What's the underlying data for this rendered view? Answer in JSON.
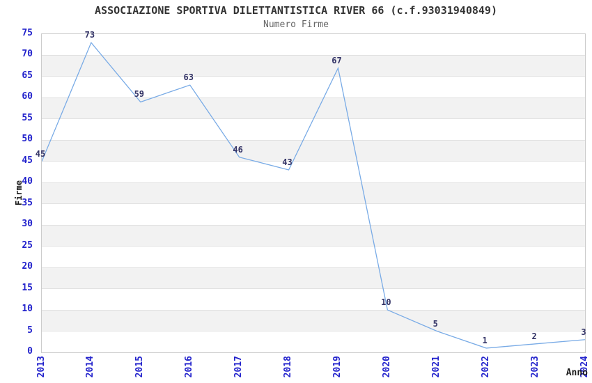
{
  "chart_data": {
    "type": "line",
    "title": "ASSOCIAZIONE SPORTIVA DILETTANTISTICA RIVER 66 (c.f.93031940849)",
    "subtitle": "Numero Firme",
    "xlabel": "Anno",
    "ylabel": "Firme",
    "categories": [
      "2013",
      "2014",
      "2015",
      "2016",
      "2017",
      "2018",
      "2019",
      "2020",
      "2021",
      "2022",
      "2023",
      "2024"
    ],
    "series": [
      {
        "name": "Numero Firme",
        "values": [
          45,
          73,
          59,
          63,
          46,
          43,
          67,
          10,
          5,
          1,
          2,
          3
        ]
      }
    ],
    "ylim": [
      0,
      75
    ],
    "ytick_step": 5,
    "legend": "none",
    "grid": "horizontal-bands-alternating",
    "point_labels_visible": true,
    "colors": {
      "line": "#79abe6",
      "tick_label": "#2222cc",
      "point_label": "#333366",
      "band": "#f2f2f2",
      "gridline": "#e1e1e1",
      "plot_border": "#cccccc",
      "title": "#333333",
      "subtitle": "#666666",
      "axis_title": "#1a1a1a",
      "background": "#ffffff"
    }
  }
}
